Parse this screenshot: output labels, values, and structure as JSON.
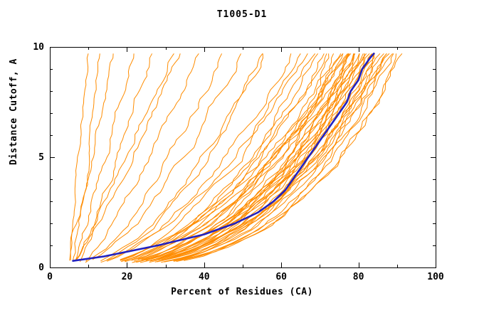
{
  "colors": {
    "model": "#ff8c00",
    "reference": "#2222c0",
    "axis": "#000000",
    "background": "#ffffff"
  },
  "chart_data": {
    "type": "line",
    "title": "T1005-D1",
    "xlabel": "Percent of Residues (CA)",
    "ylabel": "Distance Cutoff, A",
    "xlim": [
      0,
      100
    ],
    "ylim": [
      0,
      10
    ],
    "xticks": [
      0,
      20,
      40,
      60,
      80,
      100
    ],
    "yticks": [
      0,
      5,
      10
    ],
    "x_minor_step": 10,
    "y_minor_step": 1,
    "grid": false,
    "legend": "none",
    "y_data_max": 9.7,
    "reference_series": {
      "color": "#2222c0",
      "points": [
        [
          6,
          0.3
        ],
        [
          14,
          0.5
        ],
        [
          28,
          1.0
        ],
        [
          40,
          1.5
        ],
        [
          48,
          2.0
        ],
        [
          54,
          2.5
        ],
        [
          58,
          3.0
        ],
        [
          61,
          3.5
        ],
        [
          63,
          4.0
        ],
        [
          65,
          4.5
        ],
        [
          67,
          5.0
        ],
        [
          69,
          5.5
        ],
        [
          71,
          6.0
        ],
        [
          73,
          6.5
        ],
        [
          75,
          7.0
        ],
        [
          77,
          7.5
        ],
        [
          78,
          8.0
        ],
        [
          80,
          8.5
        ],
        [
          81,
          9.0
        ],
        [
          83,
          9.5
        ],
        [
          84,
          9.7
        ]
      ]
    },
    "model_series_format": [
      "x_start_pct",
      "x_end_pct_at_top",
      "shape_exponent",
      "wobble_amp",
      "seed"
    ],
    "model_series": [
      [
        5,
        10,
        1.1,
        0.6,
        11
      ],
      [
        6,
        14,
        1.0,
        0.8,
        12
      ],
      [
        5,
        18,
        0.95,
        0.9,
        13
      ],
      [
        6,
        22,
        0.9,
        1.0,
        14
      ],
      [
        7,
        27,
        0.85,
        1.1,
        15
      ],
      [
        6,
        31,
        0.9,
        1.2,
        16
      ],
      [
        5,
        34,
        0.8,
        1.2,
        17
      ],
      [
        7,
        38,
        0.75,
        1.3,
        18
      ],
      [
        6,
        45,
        0.65,
        1.4,
        19
      ],
      [
        5,
        50,
        0.6,
        1.4,
        20
      ],
      [
        6,
        55,
        0.55,
        1.5,
        21
      ],
      [
        7,
        58,
        0.55,
        1.4,
        22
      ],
      [
        5,
        61,
        0.5,
        1.5,
        23
      ],
      [
        4,
        64,
        0.5,
        1.5,
        24
      ],
      [
        6,
        66,
        0.48,
        1.5,
        25
      ],
      [
        5,
        68,
        0.46,
        1.5,
        26
      ],
      [
        7,
        70,
        0.45,
        1.6,
        27
      ],
      [
        4,
        71,
        0.44,
        1.5,
        28
      ],
      [
        6,
        72,
        0.43,
        1.6,
        29
      ],
      [
        5,
        73,
        0.42,
        1.6,
        30
      ],
      [
        7,
        74,
        0.42,
        1.5,
        31
      ],
      [
        4,
        75,
        0.4,
        1.6,
        32
      ],
      [
        6,
        75,
        0.45,
        1.5,
        33
      ],
      [
        5,
        76,
        0.38,
        1.6,
        34
      ],
      [
        7,
        77,
        0.42,
        1.5,
        35
      ],
      [
        4,
        77,
        0.36,
        1.6,
        36
      ],
      [
        6,
        78,
        0.4,
        1.5,
        37
      ],
      [
        5,
        78,
        0.34,
        1.6,
        38
      ],
      [
        7,
        79,
        0.42,
        1.5,
        39
      ],
      [
        4,
        79,
        0.36,
        1.6,
        40
      ],
      [
        6,
        80,
        0.4,
        1.5,
        41
      ],
      [
        5,
        80,
        0.33,
        1.6,
        42
      ],
      [
        7,
        81,
        0.38,
        1.5,
        43
      ],
      [
        4,
        81,
        0.35,
        1.6,
        44
      ],
      [
        6,
        82,
        0.4,
        1.5,
        45
      ],
      [
        5,
        82,
        0.32,
        1.6,
        46
      ],
      [
        7,
        83,
        0.37,
        1.5,
        47
      ],
      [
        4,
        83,
        0.34,
        1.6,
        48
      ],
      [
        6,
        84,
        0.39,
        1.5,
        49
      ],
      [
        5,
        84,
        0.31,
        1.6,
        50
      ],
      [
        7,
        85,
        0.36,
        1.5,
        51
      ],
      [
        4,
        85,
        0.33,
        1.6,
        52
      ],
      [
        6,
        86,
        0.38,
        1.5,
        53
      ],
      [
        5,
        86,
        0.3,
        1.6,
        54
      ],
      [
        7,
        87,
        0.35,
        1.5,
        55
      ],
      [
        4,
        87,
        0.32,
        1.6,
        56
      ],
      [
        6,
        88,
        0.37,
        1.5,
        57
      ],
      [
        5,
        88,
        0.3,
        1.6,
        58
      ],
      [
        7,
        89,
        0.34,
        1.5,
        59
      ],
      [
        4,
        90,
        0.31,
        1.6,
        60
      ],
      [
        6,
        91,
        0.33,
        1.5,
        61
      ],
      [
        5,
        76,
        0.5,
        1.4,
        62
      ],
      [
        6,
        79,
        0.48,
        1.4,
        63
      ],
      [
        7,
        82,
        0.46,
        1.4,
        64
      ]
    ]
  }
}
